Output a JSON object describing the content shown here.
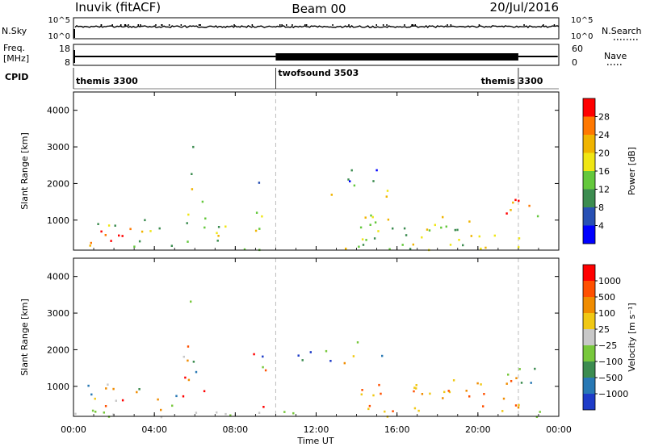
{
  "header": {
    "station": "Inuvik (fitACF)",
    "beam": "Beam 00",
    "date": "20/Jul/2016"
  },
  "top_panels": {
    "nsky_label": "N.Sky",
    "nsky_ticks": [
      "10^5",
      "10^0"
    ],
    "nsearch_label": "N.Search",
    "nsearch_ticks": [
      "10^5",
      "10^0"
    ],
    "freq_label_line1": "Freq.",
    "freq_label_line2": "[MHz]",
    "freq_ticks": [
      "18",
      "8"
    ],
    "nave_label": "Nave",
    "nave_ticks": [
      "60",
      "0"
    ],
    "cpid_label": "CPID",
    "cpid_segments": [
      {
        "label": "themis 3300",
        "start": 0,
        "end": 10
      },
      {
        "label": "twofsound 3503",
        "start": 10,
        "end": 22
      },
      {
        "label": "themis 3300",
        "start": 22,
        "end": 24
      }
    ]
  },
  "chart_data": [
    {
      "type": "heatmap",
      "quantity": "power",
      "xlabel": "",
      "ylabel": "Slant Range [km]",
      "y_ticks": [
        "1000",
        "2000",
        "3000",
        "4000"
      ],
      "ylim": [
        180,
        4500
      ],
      "colorbar_label": "Power [dB]",
      "colorbar_ticks": [
        "4",
        "8",
        "12",
        "16",
        "20",
        "24",
        "28"
      ],
      "colors": [
        "#0000ff",
        "#2850b4",
        "#3c8c50",
        "#64c83c",
        "#f0e614",
        "#f0b400",
        "#ff7800",
        "#ff0000"
      ]
    },
    {
      "type": "heatmap",
      "quantity": "velocity",
      "xlabel": "Time UT",
      "ylabel": "Slant Range [km]",
      "x_ticks": [
        "00:00",
        "04:00",
        "08:00",
        "12:00",
        "16:00",
        "20:00",
        "00:00"
      ],
      "xlim": [
        0,
        24
      ],
      "y_ticks": [
        "1000",
        "2000",
        "3000",
        "4000"
      ],
      "ylim": [
        180,
        4500
      ],
      "colorbar_label": "Velocity [m s⁻¹]",
      "colorbar_ticks": [
        "1000",
        "500",
        "100",
        "25",
        "−25",
        "−100",
        "−500",
        "−1000"
      ],
      "colors": [
        "#1e3cc8",
        "#2878b4",
        "#3c8c50",
        "#78c83c",
        "#c8c8c8",
        "#f0c814",
        "#f08c00",
        "#ff5000",
        "#ff0000"
      ]
    }
  ]
}
